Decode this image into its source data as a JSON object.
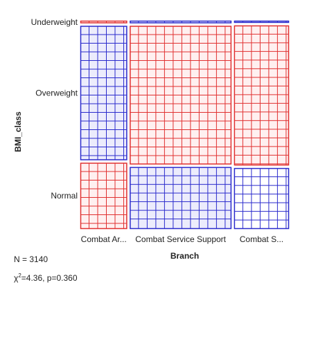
{
  "chart_data": {
    "type": "mosaic",
    "title": "",
    "xlabel": "Branch",
    "ylabel": "BMI_class",
    "x_categories": [
      "Combat Ar...",
      "Combat Service Support",
      "Combat S..."
    ],
    "y_categories": [
      "Underweight",
      "Overweight",
      "Normal"
    ],
    "column_fractions": [
      0.23,
      0.5,
      0.27
    ],
    "cells": [
      {
        "x": "Combat Ar...",
        "segments": [
          {
            "y": "Underweight",
            "fraction": 0.012,
            "color": "#e03030",
            "fill": "#fff0f0"
          },
          {
            "y": "Overweight",
            "fraction": 0.662,
            "color": "#2a2acc",
            "fill": "#ececfc"
          },
          {
            "y": "Normal",
            "fraction": 0.326,
            "color": "#e03030",
            "fill": "#fff0f0"
          }
        ]
      },
      {
        "x": "Combat Service Support",
        "segments": [
          {
            "y": "Underweight",
            "fraction": 0.012,
            "color": "#2a2acc",
            "fill": "#ececfc"
          },
          {
            "y": "Overweight",
            "fraction": 0.683,
            "color": "#e03030",
            "fill": "#fff0f0"
          },
          {
            "y": "Normal",
            "fraction": 0.305,
            "color": "#2a2acc",
            "fill": "#ececfc"
          }
        ]
      },
      {
        "x": "Combat S...",
        "segments": [
          {
            "y": "Underweight",
            "fraction": 0.01,
            "color": "#2a2acc",
            "fill": "#ececfc"
          },
          {
            "y": "Overweight",
            "fraction": 0.69,
            "color": "#e03030",
            "fill": "#fff0f0"
          },
          {
            "y": "Normal",
            "fraction": 0.3,
            "color": "#2a2acc",
            "fill": "#ffffff"
          }
        ]
      }
    ]
  },
  "stats": {
    "n_label": "N = 3140",
    "chi_symbol": "χ",
    "chi_exponent": "2",
    "chi_value": "=4.36, p=0.360"
  }
}
